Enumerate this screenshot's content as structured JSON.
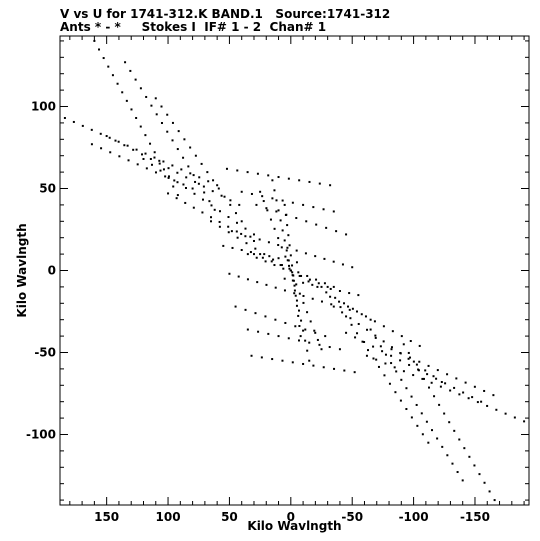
{
  "header": {
    "title_line1": "V vs U for 1741-312.K BAND.1   Source:1741-312",
    "title_line2": "Ants * - *     Stokes I  IF# 1 - 2  Chan# 1"
  },
  "chart_data": {
    "type": "scatter",
    "title": "V vs U for 1741-312.K BAND.1   Source:1741-312",
    "subtitle": "Ants * - *     Stokes I  IF# 1 - 2  Chan# 1",
    "xlabel": "Kilo Wavlngth",
    "ylabel": "Kilo Wavlngth",
    "x_reversed": true,
    "xlim": [
      188,
      -194
    ],
    "ylim": [
      -143,
      143
    ],
    "x_ticks": [
      150,
      100,
      50,
      0,
      -50,
      -100,
      -150
    ],
    "x_tick_labels": [
      "150",
      "100",
      "50",
      "0",
      "-50",
      "-100",
      "-150"
    ],
    "y_ticks": [
      100,
      50,
      0,
      -50,
      -100
    ],
    "y_tick_labels": [
      "100",
      "50",
      "0",
      "-50",
      "-100"
    ],
    "grid": false,
    "legend": "none",
    "marker_color": "#000000",
    "tracks": [
      {
        "x": [
          160,
          92
        ],
        "y": [
          140,
          46
        ]
      },
      {
        "x": [
          135,
          62
        ],
        "y": [
          127,
          37
        ]
      },
      {
        "x": [
          110,
          40
        ],
        "y": [
          105,
          30
        ]
      },
      {
        "x": [
          184,
          60
        ],
        "y": [
          93,
          52
        ]
      },
      {
        "x": [
          150,
          42
        ],
        "y": [
          82,
          40
        ]
      },
      {
        "x": [
          120,
          30
        ],
        "y": [
          68,
          22
        ]
      },
      {
        "x": [
          162,
          80
        ],
        "y": [
          77,
          50
        ]
      },
      {
        "x": [
          100,
          30
        ],
        "y": [
          47,
          18
        ]
      },
      {
        "x": [
          -166,
          -92
        ],
        "y": [
          -140,
          -45
        ]
      },
      {
        "x": [
          -140,
          -65
        ],
        "y": [
          -128,
          -36
        ]
      },
      {
        "x": [
          -112,
          -45
        ],
        "y": [
          -105,
          -28
        ]
      },
      {
        "x": [
          -190,
          -62
        ],
        "y": [
          -92,
          -52
        ]
      },
      {
        "x": [
          -155,
          -45
        ],
        "y": [
          -80,
          -38
        ]
      },
      {
        "x": [
          -123,
          -35
        ],
        "y": [
          -68,
          -22
        ]
      },
      {
        "x": [
          -165,
          -82
        ],
        "y": [
          -76,
          -48
        ]
      },
      {
        "x": [
          -105,
          -32
        ],
        "y": [
          -46,
          -16
        ]
      },
      {
        "x": [
          52,
          -32
        ],
        "y": [
          62,
          52
        ]
      },
      {
        "x": [
          40,
          -35
        ],
        "y": [
          48,
          36
        ]
      },
      {
        "x": [
          28,
          -45
        ],
        "y": [
          40,
          22
        ]
      },
      {
        "x": [
          48,
          -50
        ],
        "y": [
          24,
          2
        ]
      },
      {
        "x": [
          55,
          -5
        ],
        "y": [
          15,
          5
        ]
      },
      {
        "x": [
          -52,
          32
        ],
        "y": [
          -62,
          -52
        ]
      },
      {
        "x": [
          -40,
          35
        ],
        "y": [
          -48,
          -36
        ]
      },
      {
        "x": [
          -28,
          45
        ],
        "y": [
          -40,
          -22
        ]
      },
      {
        "x": [
          -48,
          50
        ],
        "y": [
          -24,
          -2
        ]
      },
      {
        "x": [
          -55,
          5
        ],
        "y": [
          -15,
          -5
        ]
      },
      {
        "x": [
          65,
          0
        ],
        "y": [
          30,
          0
        ]
      },
      {
        "x": [
          -65,
          0
        ],
        "y": [
          -30,
          0
        ]
      },
      {
        "x": [
          30,
          -35
        ],
        "y": [
          10,
          -10
        ]
      },
      {
        "x": [
          -30,
          35
        ],
        "y": [
          -10,
          10
        ]
      },
      {
        "x": [
          15,
          -15
        ],
        "y": [
          55,
          -55
        ]
      },
      {
        "x": [
          5,
          -8
        ],
        "y": [
          40,
          -40
        ]
      },
      {
        "x": [
          25,
          -25
        ],
        "y": [
          48,
          -48
        ]
      }
    ]
  }
}
